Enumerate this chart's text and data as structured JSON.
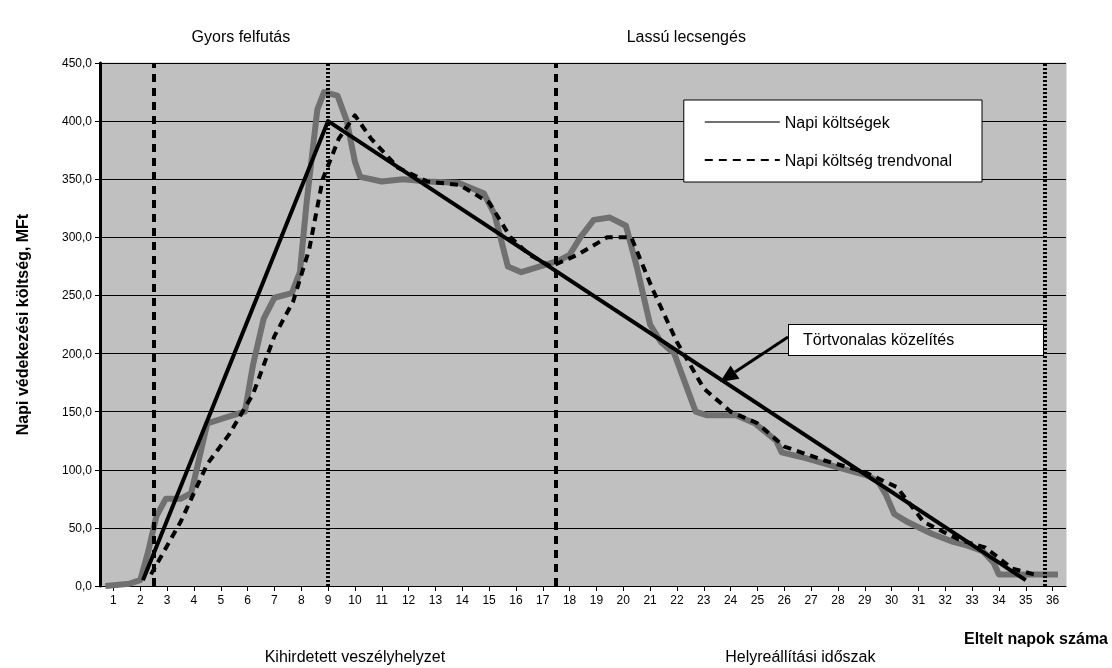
{
  "chart_data": {
    "type": "line",
    "xlabel": "Eltelt napok száma",
    "ylabel": "Napi védekezési költség, MFt",
    "xlim": [
      0.5,
      36.5
    ],
    "xticks": [
      1,
      2,
      3,
      4,
      5,
      6,
      7,
      8,
      9,
      10,
      11,
      12,
      13,
      14,
      15,
      16,
      17,
      18,
      19,
      20,
      21,
      22,
      23,
      24,
      25,
      26,
      27,
      28,
      29,
      30,
      31,
      32,
      33,
      34,
      35,
      36
    ],
    "ylim": [
      0,
      450
    ],
    "yticks": [
      {
        "value": 0,
        "label": "0,0"
      },
      {
        "value": 50,
        "label": "50,0"
      },
      {
        "value": 100,
        "label": "100,0"
      },
      {
        "value": 150,
        "label": "150,0"
      },
      {
        "value": 200,
        "label": "200,0"
      },
      {
        "value": 250,
        "label": "250,0"
      },
      {
        "value": 300,
        "label": "300,0"
      },
      {
        "value": 350,
        "label": "350,0"
      },
      {
        "value": 400,
        "label": "400,0"
      },
      {
        "value": 450,
        "label": "450,0"
      }
    ],
    "grid": "y",
    "legend": "top right",
    "marker": "none",
    "series": [
      {
        "name": "Napi költségek",
        "color": "#707070",
        "line_style": "solid",
        "x": [
          0.7,
          1.6,
          2.0,
          2.3,
          2.6,
          2.95,
          3.5,
          3.9,
          4.2,
          4.5,
          5.2,
          5.9,
          6.2,
          6.6,
          7.0,
          7.65,
          7.95,
          8.2,
          8.6,
          8.85,
          9.35,
          9.7,
          10.0,
          10.2,
          11.0,
          11.8,
          12.7,
          13.85,
          14.8,
          15.2,
          15.7,
          16.2,
          16.9,
          17.6,
          18.0,
          18.4,
          18.9,
          19.5,
          20.1,
          20.5,
          21.0,
          21.4,
          21.9,
          22.3,
          22.7,
          23.1,
          24.2,
          24.9,
          25.7,
          25.9,
          26.8,
          28.0,
          29.1,
          29.5,
          29.8,
          30.1,
          30.6,
          31.5,
          32.3,
          32.8,
          33.4,
          33.8,
          34.0,
          34.3,
          36.2
        ],
        "values": [
          0,
          2,
          5,
          30,
          60,
          75,
          75,
          80,
          110,
          140,
          145,
          150,
          190,
          230,
          248,
          252,
          270,
          330,
          410,
          425,
          422,
          400,
          365,
          352,
          348,
          350,
          348,
          347,
          338,
          320,
          275,
          270,
          275,
          280,
          285,
          300,
          315,
          317,
          310,
          275,
          225,
          210,
          200,
          175,
          150,
          147,
          147,
          140,
          125,
          115,
          110,
          102,
          95,
          90,
          78,
          62,
          55,
          45,
          38,
          35,
          30,
          20,
          10,
          10,
          10
        ]
      },
      {
        "name": "Napi költség trendvonal",
        "color": "#000000",
        "line_style": "dashed",
        "x": [
          2.4,
          3.5,
          4.5,
          5.3,
          6.2,
          7.0,
          7.7,
          8.3,
          8.8,
          9.4,
          10.0,
          10.6,
          11.6,
          12.7,
          13.9,
          15.0,
          15.8,
          16.5,
          17.3,
          18.3,
          19.4,
          20.3,
          21.1,
          22.0,
          23.0,
          24.0,
          25.0,
          26.0,
          27.5,
          29.0,
          30.2,
          31.2,
          32.5,
          33.5,
          34.5,
          35.3
        ],
        "values": [
          10,
          55,
          105,
          130,
          165,
          215,
          245,
          290,
          350,
          385,
          405,
          385,
          360,
          348,
          345,
          330,
          300,
          285,
          275,
          285,
          300,
          300,
          255,
          210,
          170,
          150,
          140,
          120,
          108,
          98,
          85,
          55,
          40,
          33,
          15,
          10
        ]
      },
      {
        "color": "#000000",
        "line_style": "solid",
        "x": [
          2.1,
          9,
          35
        ],
        "values": [
          5,
          400,
          5
        ]
      }
    ],
    "ref_lines": [
      {
        "axis": "x",
        "value": 2.5,
        "line_style": "dashed",
        "color": "#000000"
      },
      {
        "axis": "x",
        "value": 9,
        "line_style": "dotted",
        "color": "#000000"
      },
      {
        "axis": "x",
        "value": 17.5,
        "line_style": "dashed",
        "color": "#000000"
      },
      {
        "axis": "x",
        "value": 35.7,
        "line_style": "dotted",
        "color": "#000000"
      }
    ],
    "annotations": [
      "Gyors felfutás",
      "Lassú lecsengés",
      "Kihirdetett veszélyhelyzet",
      "Helyreállítási időszak",
      "Törtvonalas közelítés"
    ]
  }
}
